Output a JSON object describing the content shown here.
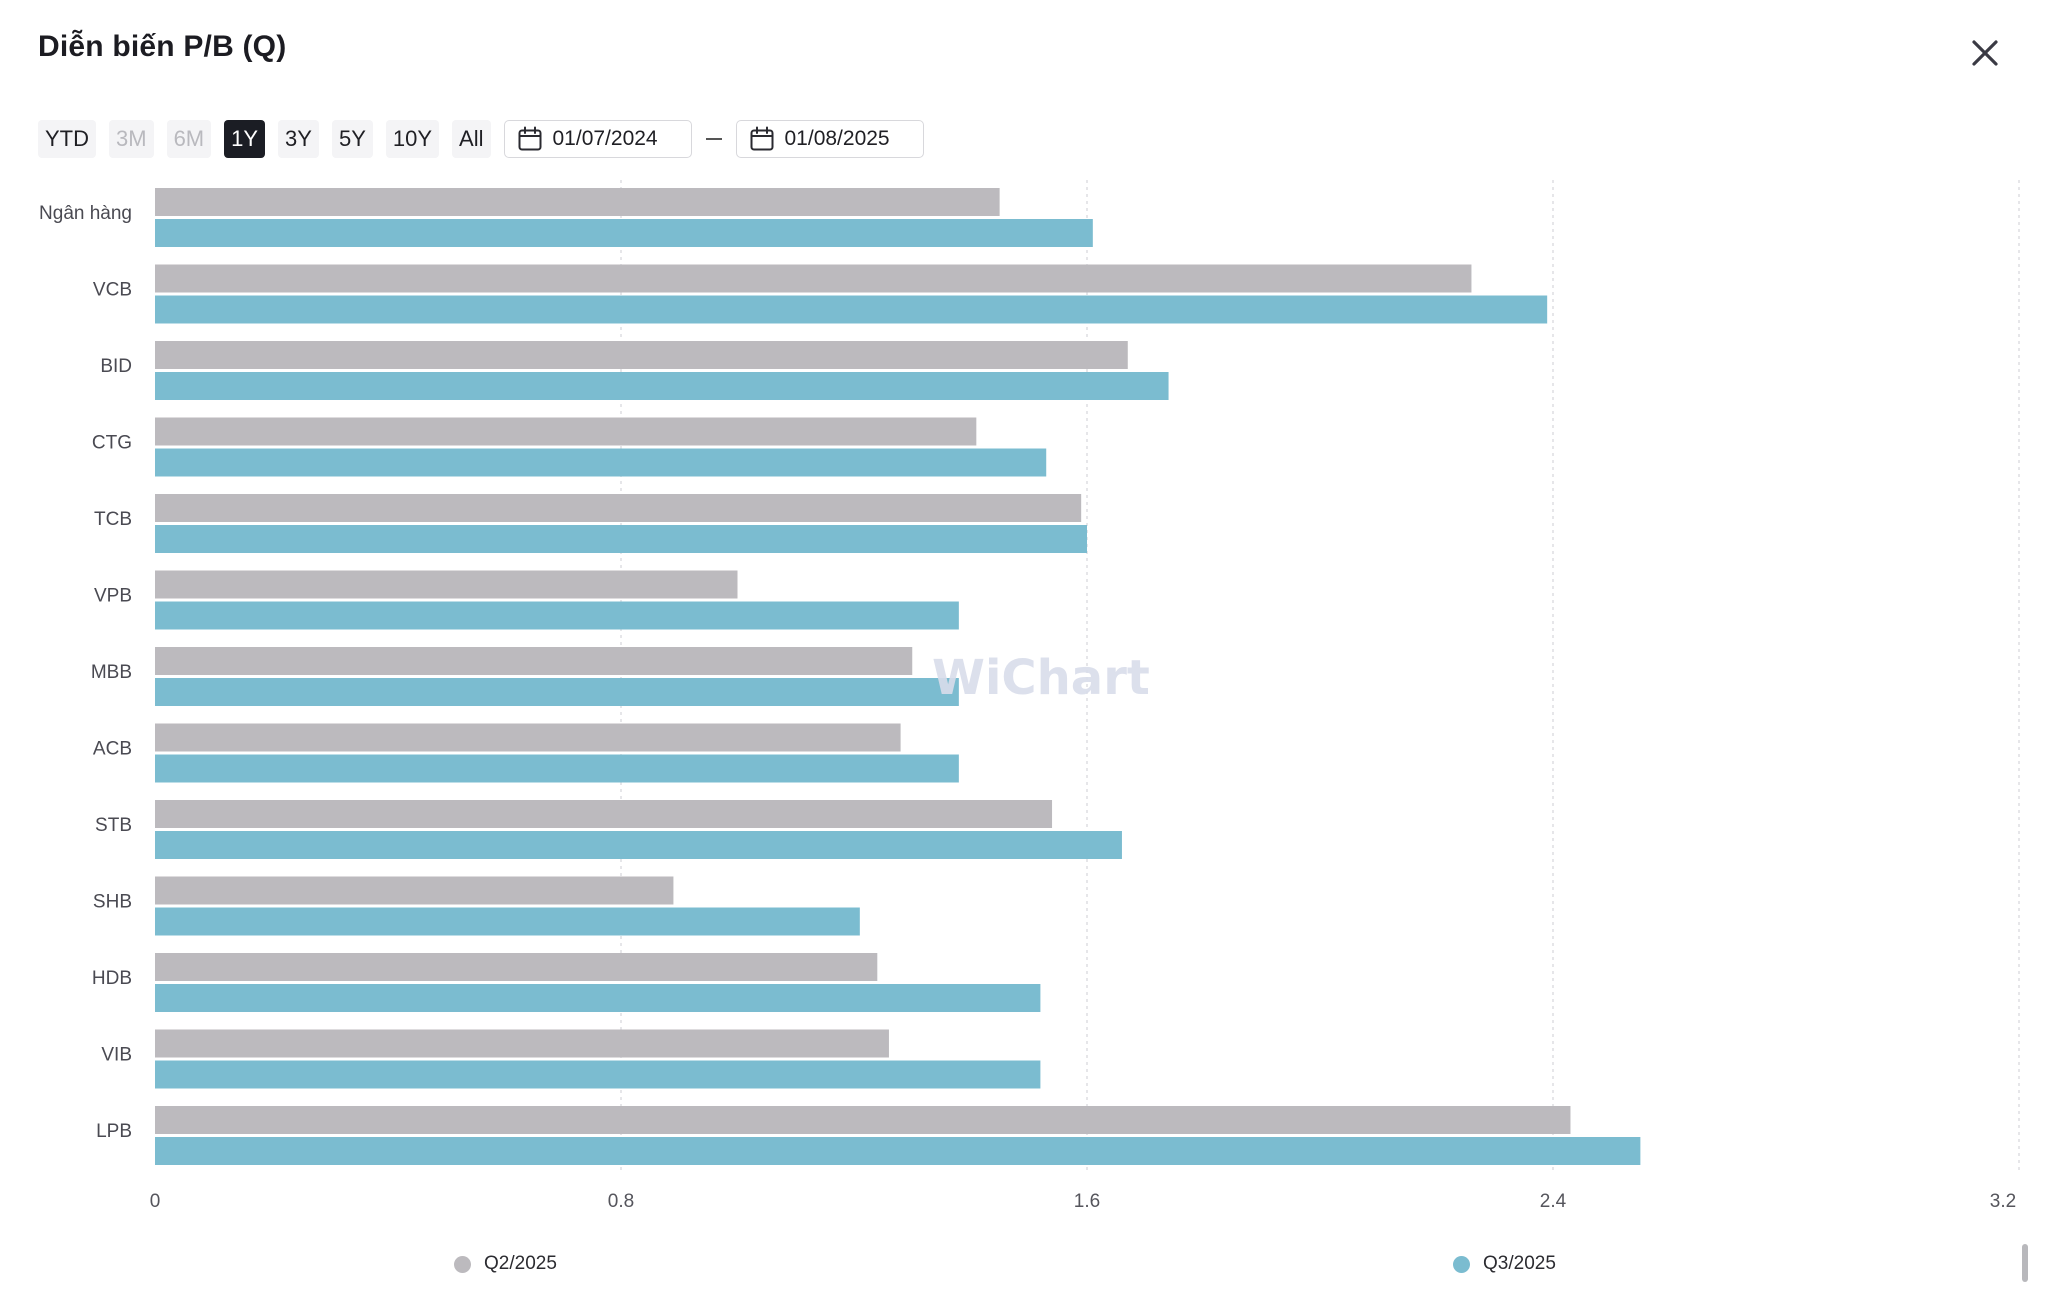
{
  "dialog": {
    "title": "Diễn biến P/B (Q)",
    "close_icon": "close-icon"
  },
  "toolbar": {
    "ranges": [
      {
        "label": "YTD",
        "state": "normal"
      },
      {
        "label": "3M",
        "state": "disabled"
      },
      {
        "label": "6M",
        "state": "disabled"
      },
      {
        "label": "1Y",
        "state": "active"
      },
      {
        "label": "3Y",
        "state": "normal"
      },
      {
        "label": "5Y",
        "state": "normal"
      },
      {
        "label": "10Y",
        "state": "normal"
      },
      {
        "label": "All",
        "state": "normal"
      }
    ],
    "date_from": "01/07/2024",
    "date_to": "01/08/2025",
    "calendar_icon": "calendar-icon"
  },
  "watermark": "WiChart",
  "colors": {
    "q2": "#bcbabe",
    "q3": "#7bbcd0",
    "active": "#1b1d24"
  },
  "chart_data": {
    "type": "bar",
    "orientation": "horizontal",
    "categories": [
      "Ngân hàng",
      "VCB",
      "BID",
      "CTG",
      "TCB",
      "VPB",
      "MBB",
      "ACB",
      "STB",
      "SHB",
      "HDB",
      "VIB",
      "LPB"
    ],
    "series": [
      {
        "name": "Q2/2025",
        "color": "#bcbabe",
        "values": [
          1.45,
          2.26,
          1.67,
          1.41,
          1.59,
          1.0,
          1.3,
          1.28,
          1.54,
          0.89,
          1.24,
          1.26,
          2.43
        ]
      },
      {
        "name": "Q3/2025",
        "color": "#7bbcd0",
        "values": [
          1.61,
          2.39,
          1.74,
          1.53,
          1.6,
          1.38,
          1.38,
          1.38,
          1.66,
          1.21,
          1.52,
          1.52,
          2.55
        ]
      }
    ],
    "x_ticks": [
      "0",
      "0.8",
      "1.6",
      "2.4",
      "3.2"
    ],
    "xlim": [
      0,
      3.2
    ],
    "grid": true,
    "legend": "bottom"
  }
}
